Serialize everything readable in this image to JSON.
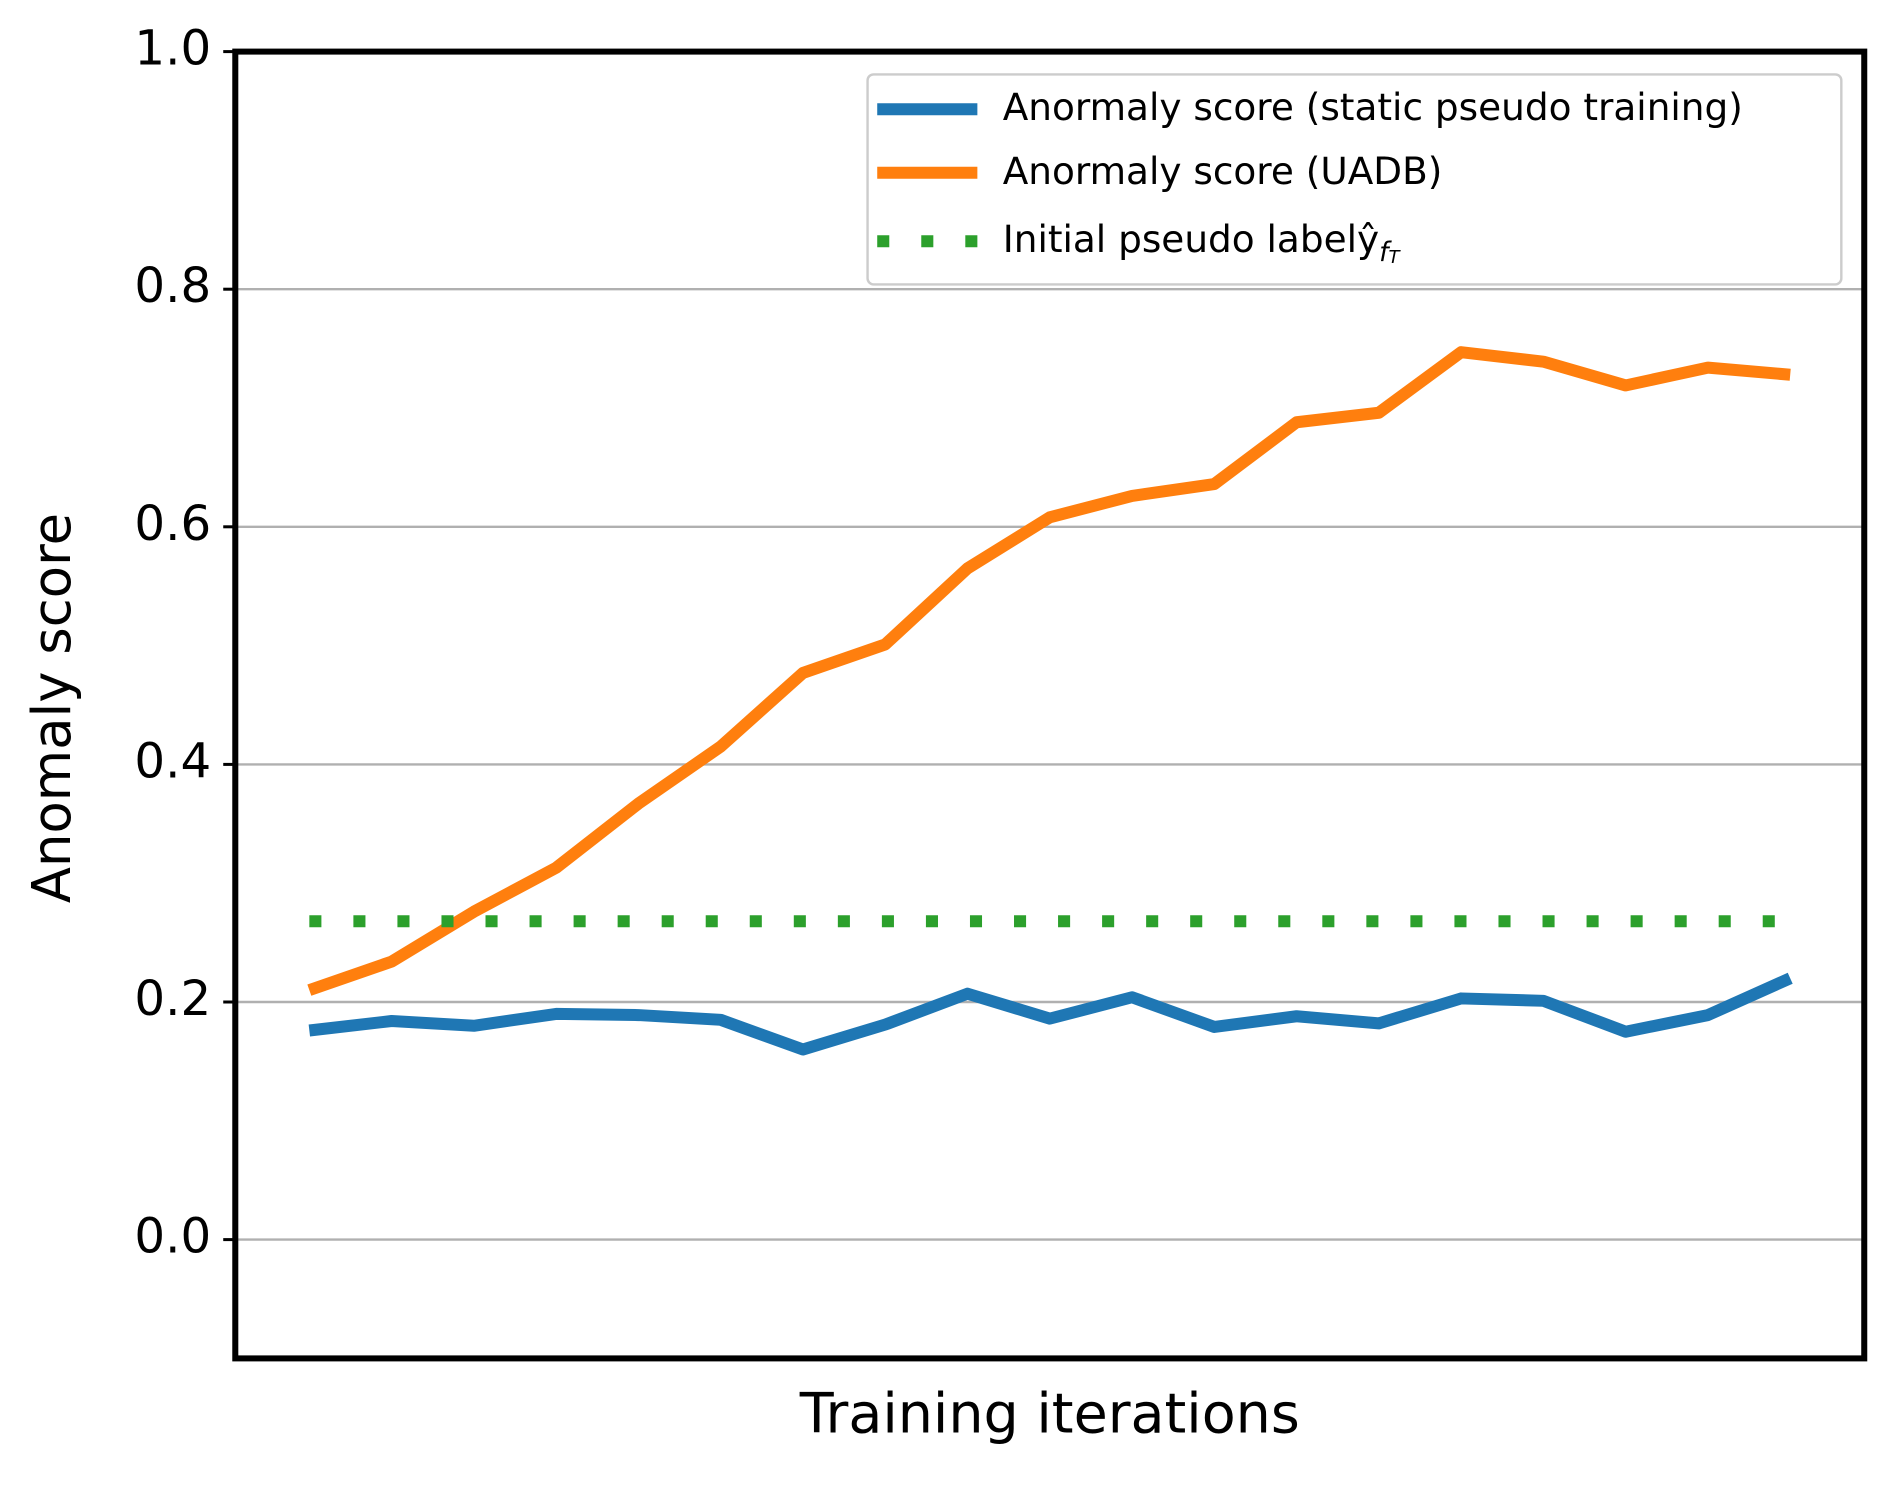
{
  "chart_data": {
    "type": "line",
    "xlabel": "Training iterations",
    "ylabel": "Anomaly score",
    "x": [
      0,
      1,
      2,
      3,
      4,
      5,
      6,
      7,
      8,
      9,
      10,
      11,
      12,
      13,
      14,
      15,
      16,
      17,
      18
    ],
    "xlim": [
      -0.9,
      18.9
    ],
    "ylim": [
      -0.1,
      1.0
    ],
    "yticks": [
      {
        "value": 0,
        "label": "0.0"
      },
      0.2,
      0.4,
      0.6,
      0.8,
      {
        "value": 1,
        "label": "1.0"
      }
    ],
    "grid": true,
    "legend": "upper right",
    "series": [
      {
        "name": "Anormaly score (static pseudo training)",
        "color": "#1f77b4",
        "style": "solid",
        "values": [
          0.176,
          0.184,
          0.18,
          0.19,
          0.189,
          0.185,
          0.16,
          0.181,
          0.207,
          0.186,
          0.204,
          0.179,
          0.188,
          0.182,
          0.203,
          0.201,
          0.175,
          0.189,
          0.22
        ]
      },
      {
        "name": "Anormaly score (UADB)",
        "color": "#ff7f0e",
        "style": "solid",
        "values": [
          0.21,
          0.234,
          0.276,
          0.313,
          0.367,
          0.415,
          0.477,
          0.501,
          0.565,
          0.608,
          0.626,
          0.636,
          0.688,
          0.696,
          0.747,
          0.739,
          0.719,
          0.734,
          0.728
        ]
      },
      {
        "name": "Initial pseudo labelŷ",
        "name_sub": "f",
        "name_subsub": "T",
        "color": "#2ca02c",
        "style": "dotted",
        "values": [
          0.268,
          0.268,
          0.268,
          0.268,
          0.268,
          0.268,
          0.268,
          0.268,
          0.268,
          0.268,
          0.268,
          0.268,
          0.268,
          0.268,
          0.268,
          0.268,
          0.268,
          0.268,
          0.268
        ]
      }
    ]
  }
}
